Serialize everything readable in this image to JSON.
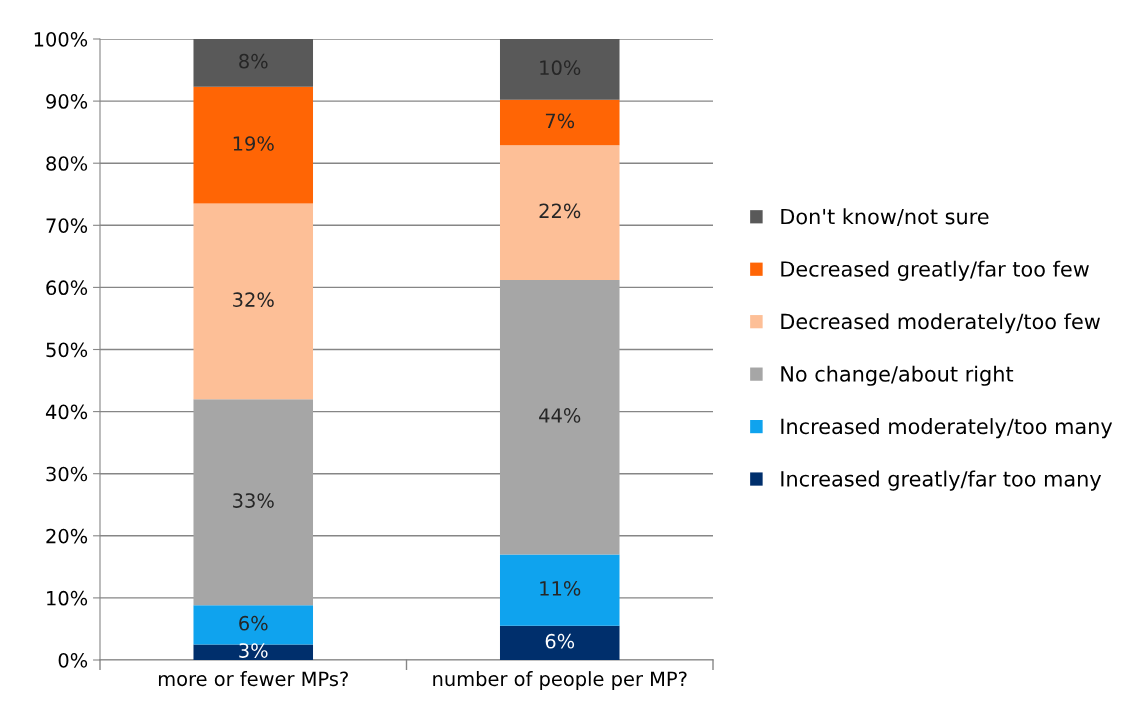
{
  "chart_data": {
    "type": "bar",
    "stacked": true,
    "categories": [
      "more or fewer MPs?",
      "number of people per MP?"
    ],
    "series": [
      {
        "name": "Increased greatly/far too many",
        "color": "#002f6c",
        "values": [
          2.5,
          5.5
        ],
        "value_labels": [
          "3%",
          "6%"
        ]
      },
      {
        "name": "Increased moderately/too many",
        "color": "#0fa3ee",
        "values": [
          6.3,
          11.5
        ],
        "value_labels": [
          "6%",
          "11%"
        ]
      },
      {
        "name": "No change/about right",
        "color": "#a6a6a6",
        "values": [
          33.2,
          44.2
        ],
        "value_labels": [
          "33%",
          "44%"
        ]
      },
      {
        "name": "Decreased moderately/too few",
        "color": "#fdbf97",
        "values": [
          31.5,
          21.7
        ],
        "value_labels": [
          "32%",
          "22%"
        ]
      },
      {
        "name": "Decreased greatly/far too few",
        "color": "#ff6505",
        "values": [
          18.8,
          7.3
        ],
        "value_labels": [
          "19%",
          "7%"
        ]
      },
      {
        "name": "Don't know/not sure",
        "color": "#595959",
        "values": [
          7.7,
          9.8
        ],
        "value_labels": [
          "8%",
          "10%"
        ]
      }
    ],
    "ylim": [
      0,
      100
    ],
    "yticks": [
      {
        "value": 0,
        "label": "0%"
      },
      {
        "value": 10,
        "label": "10%"
      },
      {
        "value": 20,
        "label": "20%"
      },
      {
        "value": 30,
        "label": "30%"
      },
      {
        "value": 40,
        "label": "40%"
      },
      {
        "value": 50,
        "label": "50%"
      },
      {
        "value": 60,
        "label": "60%"
      },
      {
        "value": 70,
        "label": "70%"
      },
      {
        "value": 80,
        "label": "80%"
      },
      {
        "value": 90,
        "label": "90%"
      },
      {
        "value": 100,
        "label": "100%"
      }
    ],
    "grid": "y",
    "legend": "right"
  }
}
